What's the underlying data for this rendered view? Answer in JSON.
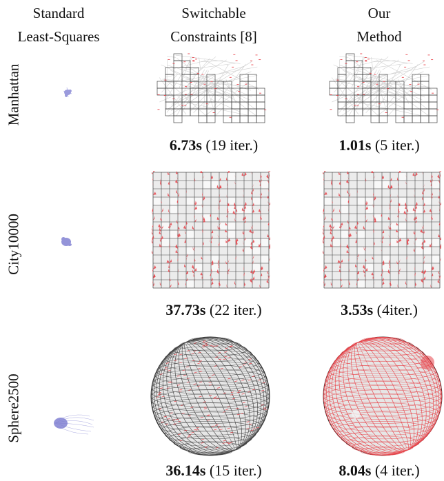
{
  "columns": [
    {
      "line1": "Standard",
      "line2": "Least-Squares"
    },
    {
      "line1": "Switchable",
      "line2": "Constraints [8]"
    },
    {
      "line1": "Our",
      "line2": "Method"
    }
  ],
  "rows": [
    {
      "label": "Manhattan",
      "switchable": {
        "time": "6.73s",
        "iter": "(19 iter.)"
      },
      "ours": {
        "time": "1.01s",
        "iter": "(5 iter.)"
      }
    },
    {
      "label": "City10000",
      "switchable": {
        "time": "37.73s",
        "iter": "(22 iter.)"
      },
      "ours": {
        "time": "3.53s",
        "iter": "(4iter.)"
      }
    },
    {
      "label": "Sphere2500",
      "switchable": {
        "time": "36.14s",
        "iter": "(15 iter.)"
      },
      "ours": {
        "time": "8.04s",
        "iter": "(4 iter.)"
      }
    }
  ],
  "colors": {
    "edge": "#d0d0d0",
    "pose": "#444444",
    "loop": "#e8434a",
    "blob": "#7a7ad0"
  }
}
